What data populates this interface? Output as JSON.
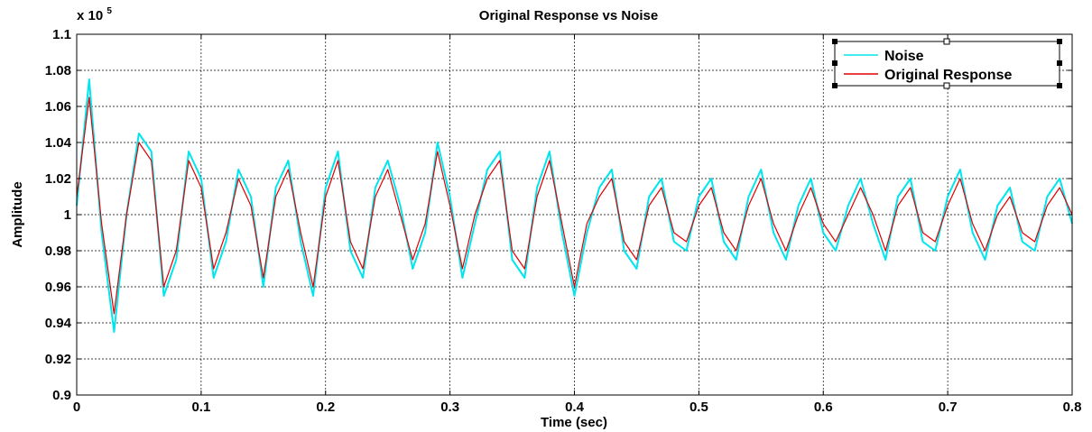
{
  "chart_data": {
    "type": "line",
    "title": "Original Response vs Noise",
    "xlabel": "Time (sec)",
    "ylabel": "Amplitude",
    "xlim": [
      0,
      0.8
    ],
    "ylim": [
      0.9,
      1.1
    ],
    "y_exponent_base": "x 10",
    "y_exponent_power": "5",
    "grid": true,
    "legend_position": "top-right",
    "x_ticks": [
      "0",
      "0.1",
      "0.2",
      "0.3",
      "0.4",
      "0.5",
      "0.6",
      "0.7",
      "0.8"
    ],
    "y_ticks": [
      "0.9",
      "0.92",
      "0.94",
      "0.96",
      "0.98",
      "1",
      "1.02",
      "1.04",
      "1.06",
      "1.08",
      "1.1"
    ],
    "x_tick_values": [
      0,
      0.1,
      0.2,
      0.3,
      0.4,
      0.5,
      0.6,
      0.7,
      0.8
    ],
    "y_tick_values": [
      0.9,
      0.92,
      0.94,
      0.96,
      0.98,
      1.0,
      1.02,
      1.04,
      1.06,
      1.08,
      1.1
    ],
    "x": [
      0,
      0.01,
      0.02,
      0.03,
      0.04,
      0.05,
      0.06,
      0.07,
      0.08,
      0.09,
      0.1,
      0.11,
      0.12,
      0.13,
      0.14,
      0.15,
      0.16,
      0.17,
      0.18,
      0.19,
      0.2,
      0.21,
      0.22,
      0.23,
      0.24,
      0.25,
      0.26,
      0.27,
      0.28,
      0.29,
      0.3,
      0.31,
      0.32,
      0.33,
      0.34,
      0.35,
      0.36,
      0.37,
      0.38,
      0.39,
      0.4,
      0.41,
      0.42,
      0.43,
      0.44,
      0.45,
      0.46,
      0.47,
      0.48,
      0.49,
      0.5,
      0.51,
      0.52,
      0.53,
      0.54,
      0.55,
      0.56,
      0.57,
      0.58,
      0.59,
      0.6,
      0.61,
      0.62,
      0.63,
      0.64,
      0.65,
      0.66,
      0.67,
      0.68,
      0.69,
      0.7,
      0.71,
      0.72,
      0.73,
      0.74,
      0.75,
      0.76,
      0.77,
      0.78,
      0.79,
      0.8
    ],
    "series": [
      {
        "name": "Noise",
        "color": "#00e5ee",
        "values": [
          1.005,
          1.075,
          0.99,
          0.935,
          1.0,
          1.045,
          1.035,
          0.955,
          0.975,
          1.035,
          1.02,
          0.965,
          0.985,
          1.025,
          1.01,
          0.96,
          1.015,
          1.03,
          0.985,
          0.955,
          1.015,
          1.035,
          0.98,
          0.965,
          1.015,
          1.03,
          1.005,
          0.97,
          0.99,
          1.04,
          1.01,
          0.965,
          0.995,
          1.025,
          1.035,
          0.975,
          0.965,
          1.015,
          1.035,
          0.99,
          0.955,
          0.99,
          1.015,
          1.025,
          0.98,
          0.97,
          1.01,
          1.02,
          0.985,
          0.98,
          1.01,
          1.02,
          0.985,
          0.975,
          1.01,
          1.025,
          0.99,
          0.975,
          1.005,
          1.02,
          0.99,
          0.98,
          1.005,
          1.02,
          0.995,
          0.975,
          1.01,
          1.02,
          0.985,
          0.98,
          1.01,
          1.025,
          0.99,
          0.975,
          1.005,
          1.015,
          0.985,
          0.98,
          1.01,
          1.02,
          0.995
        ]
      },
      {
        "name": "Original Response",
        "color": "#e00000",
        "values": [
          1.01,
          1.065,
          0.995,
          0.945,
          1.0,
          1.04,
          1.03,
          0.96,
          0.98,
          1.03,
          1.015,
          0.97,
          0.99,
          1.02,
          1.005,
          0.965,
          1.01,
          1.025,
          0.99,
          0.96,
          1.01,
          1.03,
          0.985,
          0.97,
          1.01,
          1.025,
          1.0,
          0.975,
          0.995,
          1.035,
          1.005,
          0.97,
          1.0,
          1.02,
          1.03,
          0.98,
          0.97,
          1.01,
          1.03,
          0.995,
          0.96,
          0.995,
          1.01,
          1.02,
          0.985,
          0.975,
          1.005,
          1.015,
          0.99,
          0.985,
          1.005,
          1.015,
          0.99,
          0.98,
          1.005,
          1.02,
          0.995,
          0.98,
          1.0,
          1.015,
          0.995,
          0.985,
          1.0,
          1.015,
          1.0,
          0.98,
          1.005,
          1.015,
          0.99,
          0.985,
          1.005,
          1.02,
          0.995,
          0.98,
          1.0,
          1.01,
          0.99,
          0.985,
          1.005,
          1.015,
          1.0
        ]
      }
    ]
  }
}
